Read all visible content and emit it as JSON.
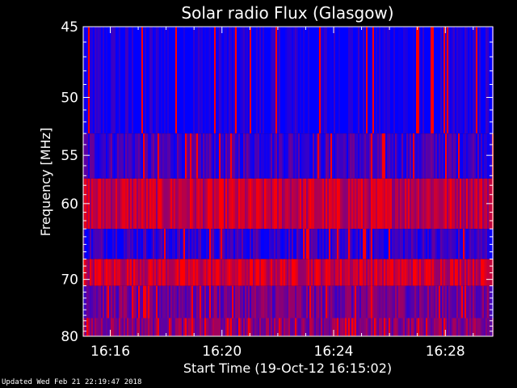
{
  "chart_data": {
    "type": "heatmap",
    "title": "Solar radio Flux (Glasgow)",
    "xlabel": "Start Time (19-Oct-12 16:15:02)",
    "ylabel": "Frequency [MHz]",
    "x_ticks": [
      "16:16",
      "16:20",
      "16:24",
      "16:28"
    ],
    "x_tick_minutes": [
      16,
      20,
      24,
      28
    ],
    "x_range_minutes": [
      15.03,
      29.7
    ],
    "y_ticks": [
      45,
      50,
      55,
      60,
      70,
      80
    ],
    "y_range": [
      45,
      80
    ],
    "y_scale": "reciprocal",
    "colors": {
      "low": "#0000ff",
      "high": "#ff0000",
      "background": "#000000"
    },
    "bands": [
      {
        "from": 45,
        "to": 53,
        "level": 0.05
      },
      {
        "from": 53,
        "to": 57.3,
        "level": 0.25
      },
      {
        "from": 57.3,
        "to": 63,
        "level": 0.75
      },
      {
        "from": 63,
        "to": 67,
        "level": 0.2
      },
      {
        "from": 67,
        "to": 71,
        "level": 0.8
      },
      {
        "from": 71,
        "to": 76.5,
        "level": 0.45
      },
      {
        "from": 76.5,
        "to": 80,
        "level": 0.55
      }
    ]
  },
  "footer": {
    "updated": "Updated Wed Feb 21 22:19:47 2018"
  }
}
